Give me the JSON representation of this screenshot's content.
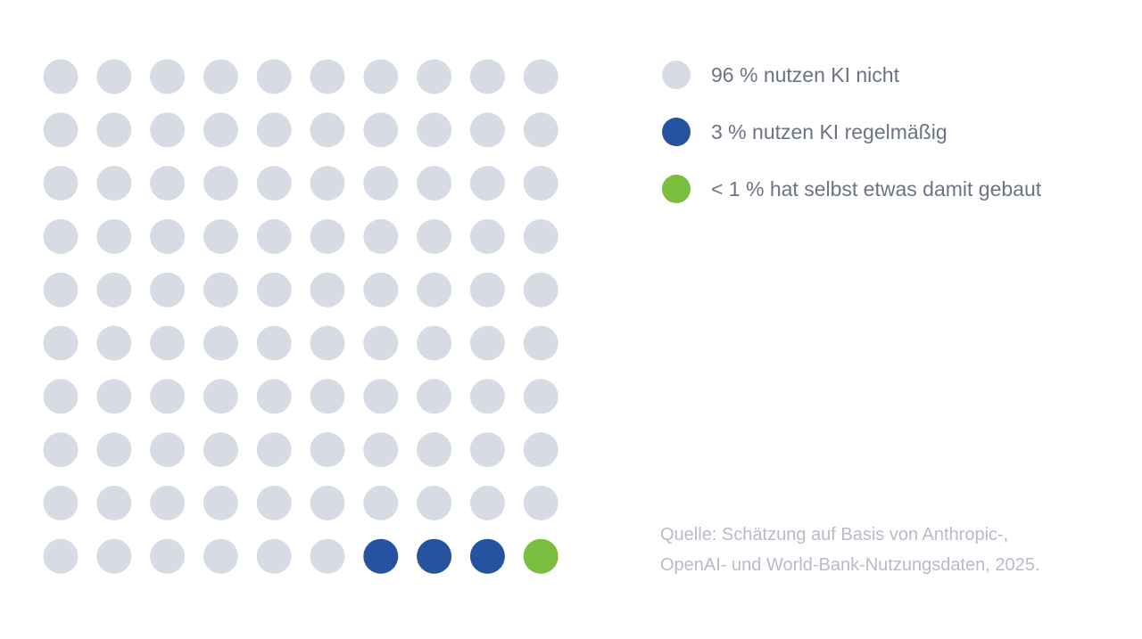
{
  "chart_data": {
    "type": "waffle",
    "grid": {
      "rows": 10,
      "cols": 10
    },
    "fill_order": "row-major from top-left; categories listed first fill first",
    "series": [
      {
        "name": "96 % nutzen KI nicht",
        "count": 96,
        "color": "#d7dbe4"
      },
      {
        "name": "3 % nutzen KI regelmäßig",
        "count": 3,
        "color": "#2453a0"
      },
      {
        "name": "< 1 % hat selbst etwas damit gebaut",
        "count": 1,
        "color": "#7bbd3e"
      }
    ],
    "legend_position": "top-right"
  },
  "source": {
    "line1": "Quelle: Schätzung auf Basis von Anthropic-,",
    "line2": "OpenAI- und World-Bank-Nutzungsdaten, 2025."
  }
}
